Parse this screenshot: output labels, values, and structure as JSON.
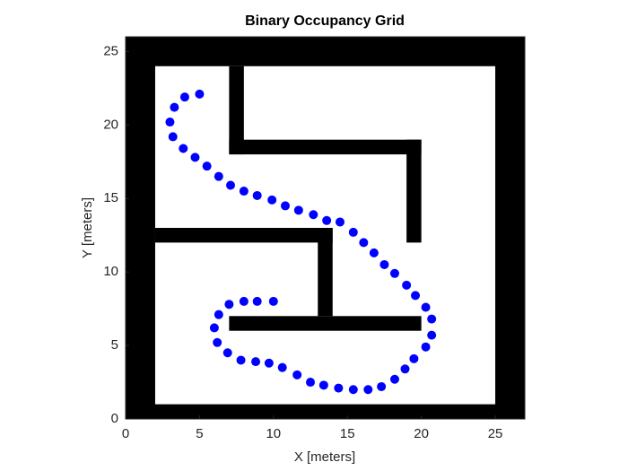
{
  "chart_data": {
    "type": "scatter",
    "title": "Binary Occupancy Grid",
    "xlabel": "X [meters]",
    "ylabel": "Y [meters]",
    "xlim": [
      0,
      27
    ],
    "ylim": [
      0,
      26
    ],
    "xticks": [
      0,
      5,
      10,
      15,
      20,
      25
    ],
    "yticks": [
      0,
      5,
      10,
      15,
      20,
      25
    ],
    "color": "#0000ff",
    "occupied_color": "#000000",
    "occupied": [
      {
        "x": [
          0,
          2
        ],
        "y": [
          0,
          26
        ]
      },
      {
        "x": [
          25,
          27
        ],
        "y": [
          0,
          26
        ]
      },
      {
        "x": [
          0,
          27
        ],
        "y": [
          0,
          1
        ]
      },
      {
        "x": [
          0,
          27
        ],
        "y": [
          24,
          26
        ]
      },
      {
        "x": [
          7,
          8
        ],
        "y": [
          18,
          24
        ]
      },
      {
        "x": [
          7,
          20
        ],
        "y": [
          18,
          19
        ]
      },
      {
        "x": [
          19,
          20
        ],
        "y": [
          12,
          19
        ]
      },
      {
        "x": [
          2,
          14
        ],
        "y": [
          12,
          13
        ]
      },
      {
        "x": [
          13,
          14
        ],
        "y": [
          7,
          13
        ]
      },
      {
        "x": [
          7,
          20
        ],
        "y": [
          6,
          7
        ]
      }
    ],
    "x": [
      5.0,
      4.0,
      3.3,
      3.0,
      3.2,
      3.9,
      4.7,
      5.5,
      6.3,
      7.1,
      8.0,
      8.9,
      9.9,
      10.8,
      11.7,
      12.7,
      13.6,
      14.5,
      15.4,
      16.1,
      16.8,
      17.5,
      18.2,
      19.0,
      19.6,
      20.3,
      20.7,
      20.7,
      20.3,
      19.5,
      18.9,
      18.2,
      17.3,
      16.4,
      15.4,
      14.4,
      13.4,
      12.5,
      11.6,
      10.6,
      9.7,
      8.8,
      7.8,
      6.9,
      6.2,
      6.0,
      6.3,
      7.0,
      8.0,
      8.9,
      10.0
    ],
    "y": [
      22.1,
      21.9,
      21.2,
      20.2,
      19.2,
      18.4,
      17.8,
      17.2,
      16.5,
      15.9,
      15.5,
      15.2,
      14.9,
      14.5,
      14.2,
      13.9,
      13.5,
      13.4,
      12.7,
      12.0,
      11.3,
      10.5,
      9.9,
      9.1,
      8.4,
      7.6,
      6.8,
      5.7,
      4.9,
      4.1,
      3.4,
      2.7,
      2.2,
      2.0,
      2.0,
      2.1,
      2.3,
      2.5,
      3.0,
      3.5,
      3.8,
      3.9,
      4.0,
      4.5,
      5.2,
      6.2,
      7.1,
      7.8,
      8.0,
      8.0,
      8.0
    ]
  }
}
